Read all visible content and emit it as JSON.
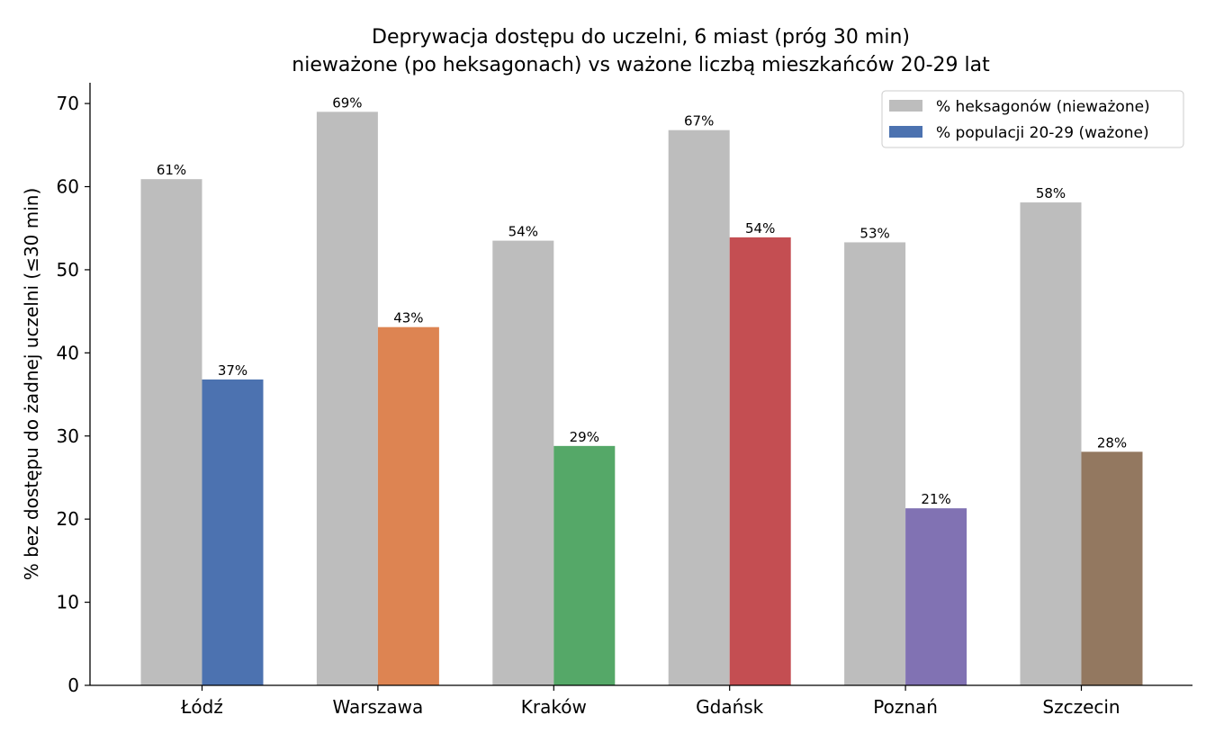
{
  "chart_data": {
    "type": "bar",
    "title": "Deprywacja dostępu do uczelni, 6 miast (próg 30 min)",
    "subtitle": "nieważone (po heksagonach) vs ważone liczbą mieszkańców 20-29 lat",
    "ylabel": "% bez dostępu do żadnej uczelni (≤30 min)",
    "xlabel": "",
    "ylim": [
      0,
      72.5
    ],
    "yticks": [
      0,
      10,
      20,
      30,
      40,
      50,
      60,
      70
    ],
    "categories": [
      "Łódź",
      "Warszawa",
      "Kraków",
      "Gdańsk",
      "Poznań",
      "Szczecin"
    ],
    "series": [
      {
        "name": "% heksagonów (nieważone)",
        "values": [
          60.9,
          69.0,
          53.5,
          66.8,
          53.3,
          58.1
        ],
        "labels": [
          "61%",
          "69%",
          "54%",
          "67%",
          "53%",
          "58%"
        ],
        "color": "#bdbdbd",
        "colors": [
          "#bdbdbd",
          "#bdbdbd",
          "#bdbdbd",
          "#bdbdbd",
          "#bdbdbd",
          "#bdbdbd"
        ]
      },
      {
        "name": "% populacji 20-29 (ważone)",
        "values": [
          36.8,
          43.1,
          28.8,
          53.9,
          21.3,
          28.1
        ],
        "labels": [
          "37%",
          "43%",
          "29%",
          "54%",
          "21%",
          "28%"
        ],
        "color": "#4c72b0",
        "colors": [
          "#4c72b0",
          "#dd8452",
          "#55a868",
          "#c44e52",
          "#8172b3",
          "#937860"
        ]
      }
    ],
    "legend_position": "top-right",
    "grid": false
  }
}
